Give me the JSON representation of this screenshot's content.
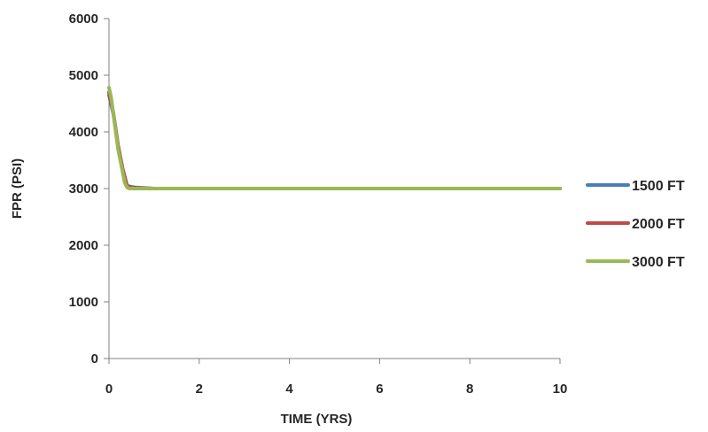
{
  "chart_data": {
    "type": "line",
    "title": "",
    "xlabel": "TIME (YRS)",
    "ylabel": "FPR (PSI)",
    "xlim": [
      0,
      10
    ],
    "ylim": [
      0,
      6000
    ],
    "x_ticks": [
      0,
      2,
      4,
      6,
      8,
      10
    ],
    "y_ticks": [
      0,
      1000,
      2000,
      3000,
      4000,
      5000,
      6000
    ],
    "x_tick_labels": [
      "0",
      "2",
      "4",
      "6",
      "8",
      "10"
    ],
    "y_tick_labels": [
      "0",
      "1000",
      "2000",
      "3000",
      "4000",
      "5000",
      "6000"
    ],
    "grid": false,
    "legend_position": "right",
    "series": [
      {
        "name": "1500 FT",
        "color": "#4a7ebb",
        "x": [
          0,
          0.1,
          0.2,
          0.3,
          0.4,
          0.5,
          0.6,
          1,
          2,
          4,
          6,
          8,
          10
        ],
        "y": [
          4650,
          4300,
          3750,
          3350,
          3050,
          3030,
          3020,
          3000,
          3000,
          3000,
          3000,
          3000,
          3000
        ]
      },
      {
        "name": "2000 FT",
        "color": "#be4b48",
        "x": [
          0,
          0.1,
          0.2,
          0.3,
          0.4,
          0.5,
          0.6,
          1,
          2,
          4,
          6,
          8,
          10
        ],
        "y": [
          4700,
          4320,
          3770,
          3360,
          3040,
          3020,
          3010,
          3000,
          3000,
          3000,
          3000,
          3000,
          3000
        ]
      },
      {
        "name": "3000 FT",
        "color": "#98b954",
        "x": [
          0,
          0.05,
          0.1,
          0.15,
          0.2,
          0.25,
          0.3,
          0.35,
          0.4,
          0.45,
          0.5,
          1,
          2,
          4,
          6,
          8,
          10
        ],
        "y": [
          4780,
          4600,
          4300,
          4000,
          3700,
          3500,
          3300,
          3100,
          3020,
          3000,
          3000,
          3000,
          3000,
          3000,
          3000,
          3000,
          3000
        ]
      }
    ]
  }
}
